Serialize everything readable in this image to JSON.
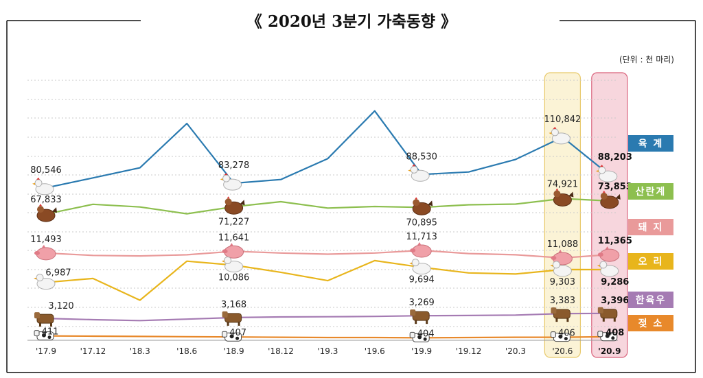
{
  "chart_data": {
    "type": "line",
    "title": "《 2020년 3분기 가축동향 》",
    "unit": "(단위 : 천 마리)",
    "categories": [
      "'17.9",
      "'17.12",
      "'18.3",
      "'18.6",
      "'18.9",
      "'18.12",
      "'19.3",
      "'19.6",
      "'19.9",
      "'19.12",
      "'20.3",
      "'20.6",
      "'20.9"
    ],
    "series": [
      {
        "key": "broiler",
        "name": "육  계",
        "color": "#2a7ab0",
        "values": [
          80546,
          86500,
          92500,
          119000,
          83278,
          85500,
          98000,
          126500,
          88530,
          90000,
          97500,
          110842,
          88203
        ],
        "labels": {
          "0": "80,546",
          "4": "83,278",
          "8": "88,530",
          "11": "110,842",
          "12": "88,203"
        }
      },
      {
        "key": "layer",
        "name": "산란계",
        "color": "#8dbf4f",
        "values": [
          67833,
          72300,
          71100,
          68000,
          71227,
          73500,
          70600,
          71300,
          70895,
          72100,
          72400,
          74921,
          73853
        ],
        "labels": {
          "0": "67,833",
          "4": "71,227",
          "8": "70,895",
          "11": "74,921",
          "12": "73,853"
        }
      },
      {
        "key": "pig",
        "name": "돼  지",
        "color": "#e99a9a",
        "values": [
          11493,
          11300,
          11250,
          11350,
          11641,
          11500,
          11400,
          11500,
          11713,
          11450,
          11350,
          11088,
          11365
        ],
        "labels": {
          "0": "11,493",
          "4": "11,641",
          "8": "11,713",
          "11": "11,088",
          "12": "11,365"
        }
      },
      {
        "key": "duck",
        "name": "오  리",
        "color": "#e8b51c",
        "values": [
          6987,
          7700,
          3800,
          10800,
          10086,
          8800,
          7300,
          10900,
          9694,
          8700,
          8500,
          9303,
          9286
        ],
        "labels": {
          "0": "6,987",
          "4": "10,086",
          "8": "9,694",
          "11": "9,303",
          "12": "9,286"
        }
      },
      {
        "key": "hanwoo",
        "name": "한육우",
        "color": "#a57bb3",
        "values": [
          3120,
          3050,
          3000,
          3080,
          3168,
          3200,
          3210,
          3230,
          3269,
          3280,
          3300,
          3383,
          3396
        ],
        "labels": {
          "0": "3,120",
          "4": "3,168",
          "8": "3,269",
          "11": "3,383",
          "12": "3,396"
        }
      },
      {
        "key": "dairy",
        "name": "젖  소",
        "color": "#e8892b",
        "values": [
          411,
          410,
          409,
          408,
          407,
          406,
          405,
          405,
          404,
          405,
          406,
          406,
          408
        ],
        "labels": {
          "0": "411",
          "4": "407",
          "8": "404",
          "11": "406",
          "12": "408"
        }
      }
    ],
    "highlight": {
      "categories": [
        "'20.6",
        "'20.9"
      ],
      "colors": [
        "#fbf3d6",
        "#f7d6dd"
      ]
    },
    "grid": true,
    "legend_position": "right"
  }
}
